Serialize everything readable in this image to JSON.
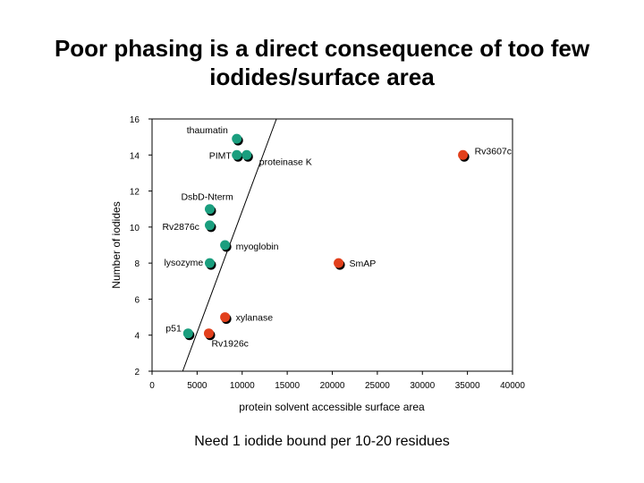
{
  "slide": {
    "title_line1": "Poor phasing is a direct consequence of too few",
    "title_line2": "iodides/surface area",
    "footer": "Need 1 iodide bound per 10-20 residues"
  },
  "chart_data": {
    "type": "scatter",
    "title": "",
    "xlabel": "protein solvent accessible surface area",
    "ylabel": "Number of iodides",
    "xlim": [
      0,
      40000
    ],
    "ylim": [
      2,
      16
    ],
    "x_ticks": [
      0,
      5000,
      10000,
      15000,
      20000,
      25000,
      30000,
      35000,
      40000
    ],
    "x_tick_labels": [
      "0",
      "5000",
      "10000",
      "15000",
      "20000",
      "25000",
      "30000",
      "35000",
      "40000"
    ],
    "y_ticks": [
      2,
      4,
      6,
      8,
      10,
      12,
      14,
      16
    ],
    "y_tick_labels": [
      "2",
      "4",
      "6",
      "8",
      "10",
      "12",
      "14",
      "16"
    ],
    "grid": false,
    "colors": {
      "good": "#1a9e7e",
      "poor": "#e2401c",
      "line": "#000000"
    },
    "trend_line": [
      {
        "x": 3400,
        "y": 2
      },
      {
        "x": 13800,
        "y": 16
      }
    ],
    "points": [
      {
        "label": "thaumatin",
        "x": 9400,
        "y": 14.9,
        "group": "good"
      },
      {
        "label": "PIMT",
        "x": 9400,
        "y": 14.0,
        "group": "good"
      },
      {
        "label": "proteinase K",
        "x": 10500,
        "y": 14.0,
        "group": "good"
      },
      {
        "label": "Rv3607c",
        "x": 34500,
        "y": 14.0,
        "group": "poor"
      },
      {
        "label": "DsbD-Nterm",
        "x": 6400,
        "y": 11.0,
        "group": "good"
      },
      {
        "label": "Rv2876c",
        "x": 6400,
        "y": 10.1,
        "group": "good"
      },
      {
        "label": "myoglobin",
        "x": 8100,
        "y": 9.0,
        "group": "good"
      },
      {
        "label": "lysozyme",
        "x": 6400,
        "y": 8.0,
        "group": "good"
      },
      {
        "label": "SmAP",
        "x": 20700,
        "y": 8.0,
        "group": "poor"
      },
      {
        "label": "xylanase",
        "x": 8100,
        "y": 5.0,
        "group": "poor"
      },
      {
        "label": "p51",
        "x": 4000,
        "y": 4.1,
        "group": "good"
      },
      {
        "label": "Rv1926c",
        "x": 6300,
        "y": 4.1,
        "group": "poor"
      }
    ]
  }
}
